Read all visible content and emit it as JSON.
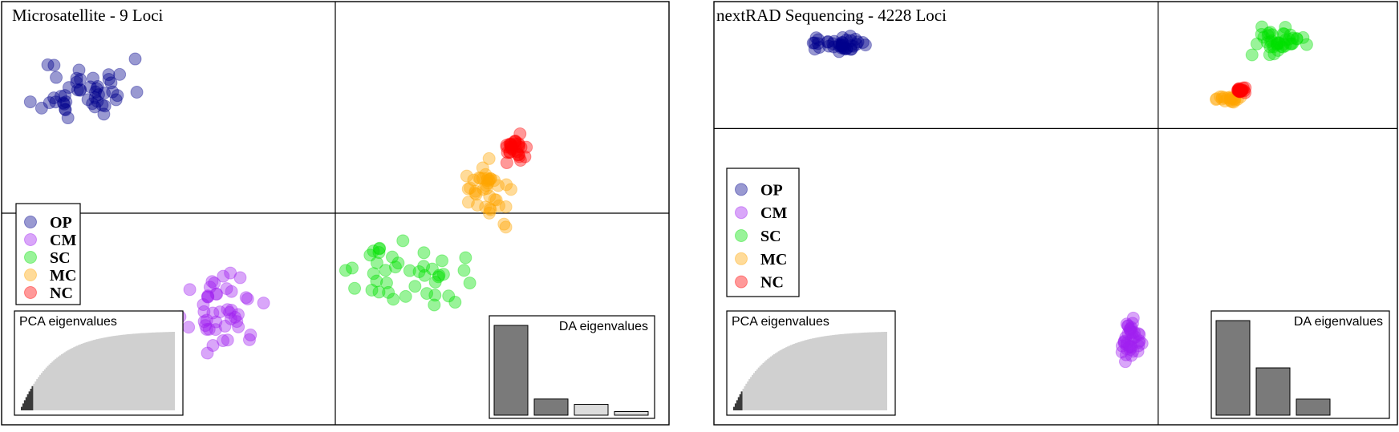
{
  "colors": {
    "OP": "#00008b",
    "CM": "#a020f0",
    "SC": "#00e000",
    "MC": "#ffa500",
    "NC": "#ff0000"
  },
  "chart_data": [
    {
      "type": "scatter",
      "title": "Microsatellite - 9 Loci",
      "xlim": [
        -10,
        10
      ],
      "ylim": [
        -10,
        10
      ],
      "axes_at": [
        0,
        0
      ],
      "legend": [
        "OP",
        "CM",
        "SC",
        "MC",
        "NC"
      ],
      "groups": {
        "OP": {
          "center": [
            -7.5,
            5.8
          ],
          "spread": [
            1.3,
            1.5
          ],
          "count": 48,
          "seed": 11
        },
        "CM": {
          "center": [
            -3.3,
            -4.7
          ],
          "spread": [
            1.0,
            1.5
          ],
          "count": 45,
          "seed": 23
        },
        "SC": {
          "center": [
            2.2,
            -3.0
          ],
          "spread": [
            1.6,
            1.4
          ],
          "count": 42,
          "seed": 37
        },
        "MC": {
          "center": [
            4.6,
            1.0
          ],
          "spread": [
            0.8,
            1.3
          ],
          "count": 40,
          "seed": 41
        },
        "NC": {
          "center": [
            5.4,
            3.1
          ],
          "spread": [
            0.4,
            0.6
          ],
          "count": 30,
          "seed": 53
        }
      },
      "insets": {
        "pca": {
          "label": "PCA eigenvalues",
          "retained": 8,
          "total": 100
        },
        "da": {
          "label": "DA eigenvalues",
          "values": [
            100,
            18,
            12,
            4
          ],
          "retained": 2
        }
      }
    },
    {
      "type": "scatter",
      "title": "nextRAD Sequencing - 4228 Loci",
      "xlim": [
        -10,
        10
      ],
      "ylim": [
        -10,
        10
      ],
      "axes_at": [
        3,
        4
      ],
      "legend": [
        "OP",
        "CM",
        "SC",
        "MC",
        "NC"
      ],
      "groups": {
        "OP": {
          "center": [
            -6.4,
            8.0
          ],
          "spread": [
            0.9,
            0.4
          ],
          "count": 40,
          "seed": 61
        },
        "CM": {
          "center": [
            2.2,
            -6.1
          ],
          "spread": [
            0.3,
            0.9
          ],
          "count": 40,
          "seed": 67
        },
        "SC": {
          "center": [
            6.6,
            8.1
          ],
          "spread": [
            0.8,
            0.6
          ],
          "count": 40,
          "seed": 71
        },
        "MC": {
          "center": [
            5.0,
            5.4
          ],
          "spread": [
            0.4,
            0.15
          ],
          "count": 20,
          "seed": 79
        },
        "NC": {
          "center": [
            5.4,
            5.8
          ],
          "spread": [
            0.12,
            0.1
          ],
          "count": 25,
          "seed": 83
        }
      },
      "insets": {
        "pca": {
          "label": "PCA eigenvalues",
          "retained": 6,
          "total": 100
        },
        "da": {
          "label": "DA eigenvalues",
          "values": [
            100,
            50,
            17
          ],
          "retained": 3
        }
      }
    }
  ]
}
